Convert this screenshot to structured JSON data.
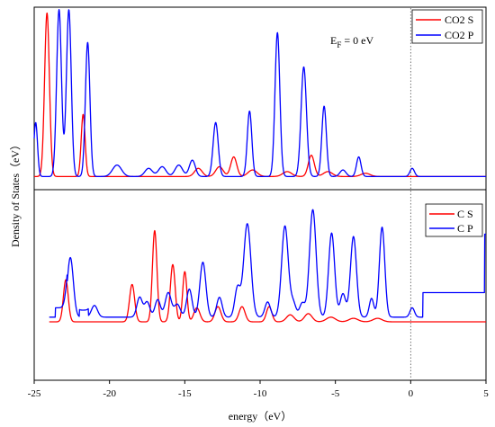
{
  "chart_data": {
    "type": "line",
    "xlabel": "energy（eV）",
    "ylabel": "Density of States（eV）",
    "xlim": [
      -25,
      5
    ],
    "xticks": [
      -25,
      -20,
      -15,
      -10,
      -5,
      0,
      5
    ],
    "fermi_level": 0,
    "fermi_line_style": "dotted",
    "panels": [
      {
        "id": "top",
        "annotation": {
          "base": "E",
          "sub": "F",
          "rest": " = 0 eV"
        },
        "legend_position": "top-right",
        "series": [
          {
            "name": "CO2 S",
            "color": "#ff0000",
            "baseline": 0.02,
            "peaks": [
              [
                -24.15,
                1.0,
                0.16
              ],
              [
                -21.75,
                0.38,
                0.13
              ],
              [
                -14.1,
                0.05,
                0.25
              ],
              [
                -12.7,
                0.06,
                0.25
              ],
              [
                -11.75,
                0.12,
                0.2
              ],
              [
                -10.5,
                0.04,
                0.3
              ],
              [
                -8.2,
                0.03,
                0.3
              ],
              [
                -6.6,
                0.13,
                0.2
              ],
              [
                -5.5,
                0.03,
                0.3
              ],
              [
                -3.0,
                0.02,
                0.3
              ]
            ]
          },
          {
            "name": "CO2 P",
            "color": "#0000ff",
            "baseline": 0.02,
            "peaks": [
              [
                -24.9,
                0.33,
                0.12
              ],
              [
                -23.35,
                1.02,
                0.16
              ],
              [
                -22.7,
                1.02,
                0.16
              ],
              [
                -21.45,
                0.82,
                0.15
              ],
              [
                -19.5,
                0.07,
                0.3
              ],
              [
                -17.4,
                0.05,
                0.25
              ],
              [
                -16.5,
                0.06,
                0.25
              ],
              [
                -15.4,
                0.07,
                0.25
              ],
              [
                -14.5,
                0.1,
                0.2
              ],
              [
                -12.95,
                0.33,
                0.17
              ],
              [
                -10.7,
                0.4,
                0.15
              ],
              [
                -8.85,
                0.88,
                0.16
              ],
              [
                -7.1,
                0.67,
                0.18
              ],
              [
                -5.75,
                0.43,
                0.15
              ],
              [
                -4.5,
                0.04,
                0.2
              ],
              [
                -3.45,
                0.12,
                0.15
              ],
              [
                0.1,
                0.05,
                0.15
              ]
            ]
          }
        ]
      },
      {
        "id": "bottom",
        "legend_position": "top-right",
        "series": [
          {
            "name": "C S",
            "color": "#ff0000",
            "baseline": 0.0,
            "peaks": [
              [
                -22.9,
                0.36,
                0.16
              ],
              [
                -18.5,
                0.32,
                0.17
              ],
              [
                -17.0,
                0.78,
                0.15
              ],
              [
                -15.8,
                0.49,
                0.16
              ],
              [
                -15.0,
                0.43,
                0.14
              ],
              [
                -14.2,
                0.12,
                0.2
              ],
              [
                -12.8,
                0.13,
                0.2
              ],
              [
                -11.2,
                0.13,
                0.2
              ],
              [
                -9.4,
                0.13,
                0.18
              ],
              [
                -8.0,
                0.06,
                0.25
              ],
              [
                -6.8,
                0.07,
                0.25
              ],
              [
                -5.3,
                0.04,
                0.3
              ],
              [
                -3.8,
                0.03,
                0.3
              ],
              [
                -2.2,
                0.03,
                0.3
              ]
            ]
          },
          {
            "name": "C P",
            "color": "#0000ff",
            "baseline": 0.04,
            "steps": [
              [
                -23.6,
                -22.8,
                0.08
              ],
              [
                -22.0,
                -21.4,
                0.06
              ],
              [
                0.8,
                5.0,
                0.21
              ],
              [
                4.9,
                5.0,
                0.5
              ]
            ],
            "peaks": [
              [
                -22.6,
                0.51,
                0.2
              ],
              [
                -21.0,
                0.1,
                0.2
              ],
              [
                -18.0,
                0.17,
                0.18
              ],
              [
                -17.5,
                0.13,
                0.18
              ],
              [
                -16.8,
                0.15,
                0.18
              ],
              [
                -16.1,
                0.21,
                0.2
              ],
              [
                -15.5,
                0.11,
                0.2
              ],
              [
                -14.7,
                0.24,
                0.18
              ],
              [
                -13.8,
                0.47,
                0.2
              ],
              [
                -12.7,
                0.17,
                0.18
              ],
              [
                -11.5,
                0.25,
                0.18
              ],
              [
                -10.85,
                0.8,
                0.24
              ],
              [
                -9.5,
                0.13,
                0.18
              ],
              [
                -8.35,
                0.78,
                0.22
              ],
              [
                -7.8,
                0.12,
                0.18
              ],
              [
                -7.2,
                0.12,
                0.18
              ],
              [
                -6.5,
                0.92,
                0.22
              ],
              [
                -5.25,
                0.72,
                0.2
              ],
              [
                -4.5,
                0.2,
                0.18
              ],
              [
                -3.8,
                0.69,
                0.2
              ],
              [
                -2.6,
                0.16,
                0.15
              ],
              [
                -1.9,
                0.77,
                0.18
              ],
              [
                0.1,
                0.08,
                0.15
              ]
            ]
          }
        ]
      }
    ]
  }
}
